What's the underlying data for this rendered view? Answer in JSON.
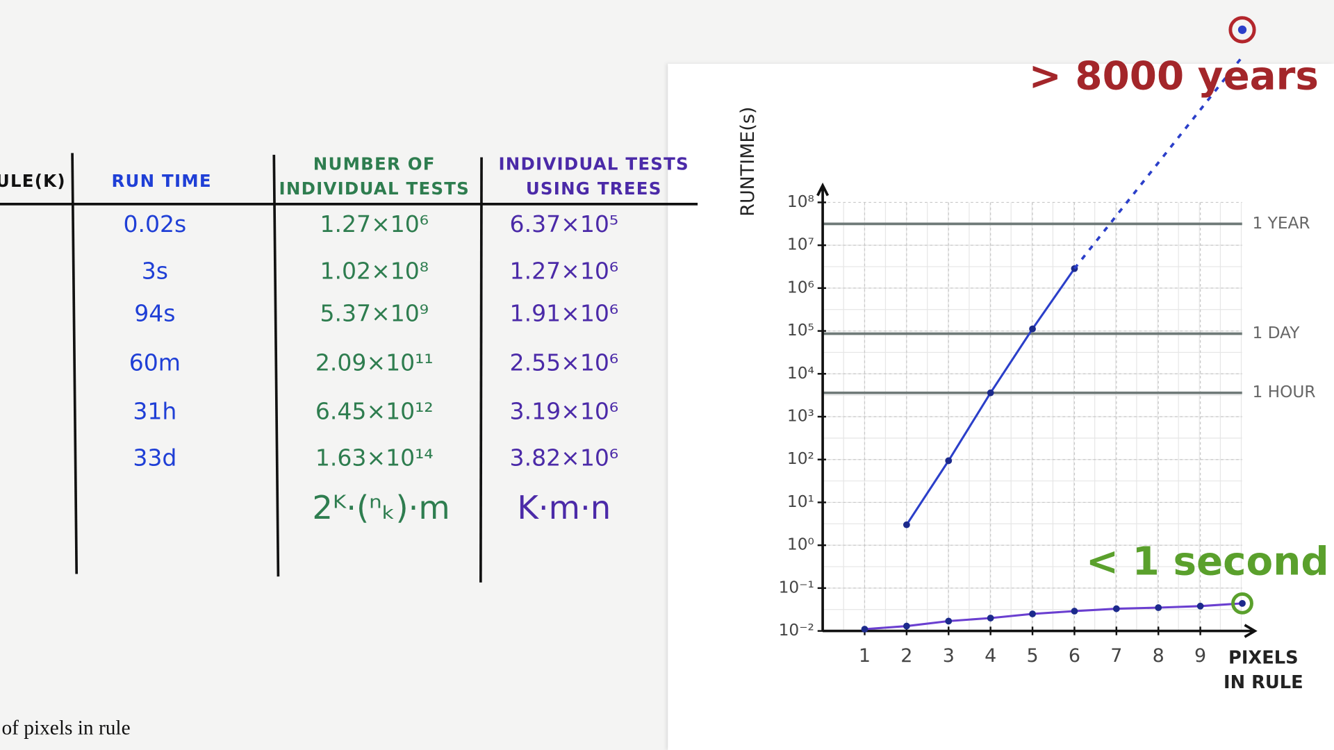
{
  "table": {
    "headers": [
      [
        "ULE(K)"
      ],
      [
        "RUN TIME"
      ],
      [
        "NUMBER OF",
        "INDIVIDUAL TESTS"
      ],
      [
        "INDIVIDUAL TESTS",
        "USING TREES"
      ]
    ],
    "rows": [
      [
        "0.02s",
        "1.27×10⁶",
        "6.37×10⁵"
      ],
      [
        "3s",
        "1.02×10⁸",
        "1.27×10⁶"
      ],
      [
        "94s",
        "5.37×10⁹",
        "1.91×10⁶"
      ],
      [
        "60m",
        "2.09×10¹¹",
        "2.55×10⁶"
      ],
      [
        "31h",
        "6.45×10¹²",
        "3.19×10⁶"
      ],
      [
        "33d",
        "1.63×10¹⁴",
        "3.82×10⁶"
      ]
    ],
    "formulas": [
      "2ᴷ·(ⁿₖ)·m",
      "K·m·n"
    ]
  },
  "caption": "of pixels in rule",
  "chart_data": {
    "type": "line",
    "yscale": "log",
    "grid": true,
    "ylabel": "RUNTIME(s)",
    "xlabel": [
      "PIXELS",
      "IN RULE"
    ],
    "xlim": [
      0,
      10.3
    ],
    "xticks": [
      1,
      2,
      3,
      4,
      5,
      6,
      7,
      8,
      9
    ],
    "ylim": [
      0.01,
      100000000
    ],
    "yticks": [
      {
        "value": 0.01,
        "label": "10⁻²"
      },
      {
        "value": 0.1,
        "label": "10⁻¹"
      },
      {
        "value": 1,
        "label": "10⁰"
      },
      {
        "value": 10,
        "label": "10¹"
      },
      {
        "value": 100,
        "label": "10²"
      },
      {
        "value": 1000,
        "label": "10³"
      },
      {
        "value": 10000,
        "label": "10⁴"
      },
      {
        "value": 100000,
        "label": "10⁵"
      },
      {
        "value": 1000000,
        "label": "10⁶"
      },
      {
        "value": 10000000,
        "label": "10⁷"
      },
      {
        "value": 100000000,
        "label": "10⁸"
      }
    ],
    "reference_lines": [
      {
        "value": 31536000,
        "label": "1 YEAR"
      },
      {
        "value": 86400,
        "label": "1 DAY"
      },
      {
        "value": 3600,
        "label": "1 HOUR"
      }
    ],
    "series": [
      {
        "color": "#2b3fc9",
        "x": [
          2,
          3,
          4,
          5,
          6
        ],
        "values": [
          3,
          94,
          3600,
          111600,
          2851200
        ],
        "markers": true,
        "dashed": false
      },
      {
        "color": "#2b3fc9",
        "x": [
          6,
          10
        ],
        "values": [
          2851200,
          250000000000
        ],
        "markers": false,
        "dashed": true
      },
      {
        "color": "#6a3fd0",
        "x": [
          1,
          2,
          3,
          4,
          5,
          6,
          7,
          8,
          9,
          10
        ],
        "values": [
          0.011,
          0.013,
          0.017,
          0.02,
          0.025,
          0.029,
          0.033,
          0.035,
          0.038,
          0.044
        ],
        "markers": true,
        "dashed": false
      }
    ],
    "annotations": [
      {
        "text": "> 8000 years",
        "color": "#a3262a"
      },
      {
        "text": "< 1 second",
        "color": "#5aa02c"
      }
    ]
  }
}
